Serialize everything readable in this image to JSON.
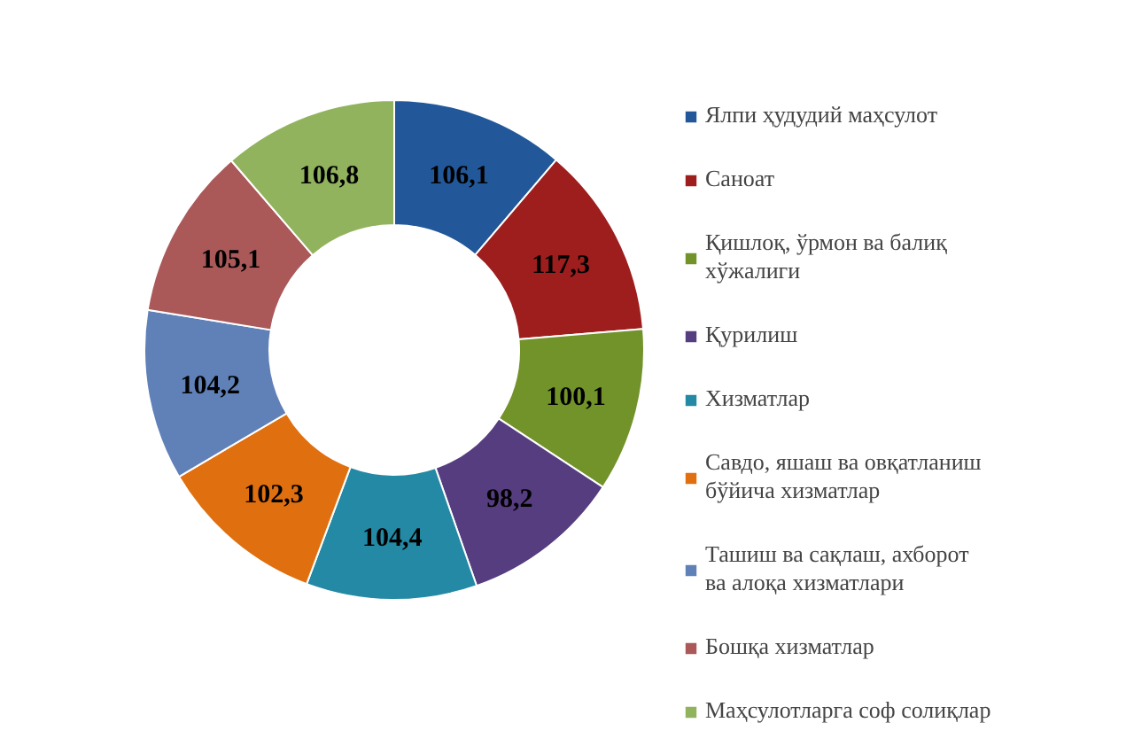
{
  "chart_data": {
    "type": "donut",
    "categories": [
      "Ялпи ҳудудий маҳсулот",
      "Саноат",
      "Қишлоқ, ўрмон ва балиқ хўжалиги",
      "Қурилиш",
      "Хизматлар",
      "Савдо, яшаш ва овқатланиш бўйича хизматлар",
      "Ташиш ва сақлаш, ахборот ва алоқа хизматлари",
      "Бошқа хизматлар",
      "Маҳсулотларга соф солиқлар"
    ],
    "values": [
      106.1,
      117.3,
      100.1,
      98.2,
      104.4,
      102.3,
      104.2,
      105.1,
      106.8
    ],
    "value_labels": [
      "106,1",
      "117,3",
      "100,1",
      "98,2",
      "104,4",
      "102,3",
      "104,2",
      "105,1",
      "106,8"
    ],
    "colors": [
      "#22589a",
      "#9e1d1d",
      "#72922a",
      "#553d80",
      "#2389a4",
      "#e0700f",
      "#6080b8",
      "#aa5858",
      "#92b35e"
    ],
    "legend": "right"
  }
}
